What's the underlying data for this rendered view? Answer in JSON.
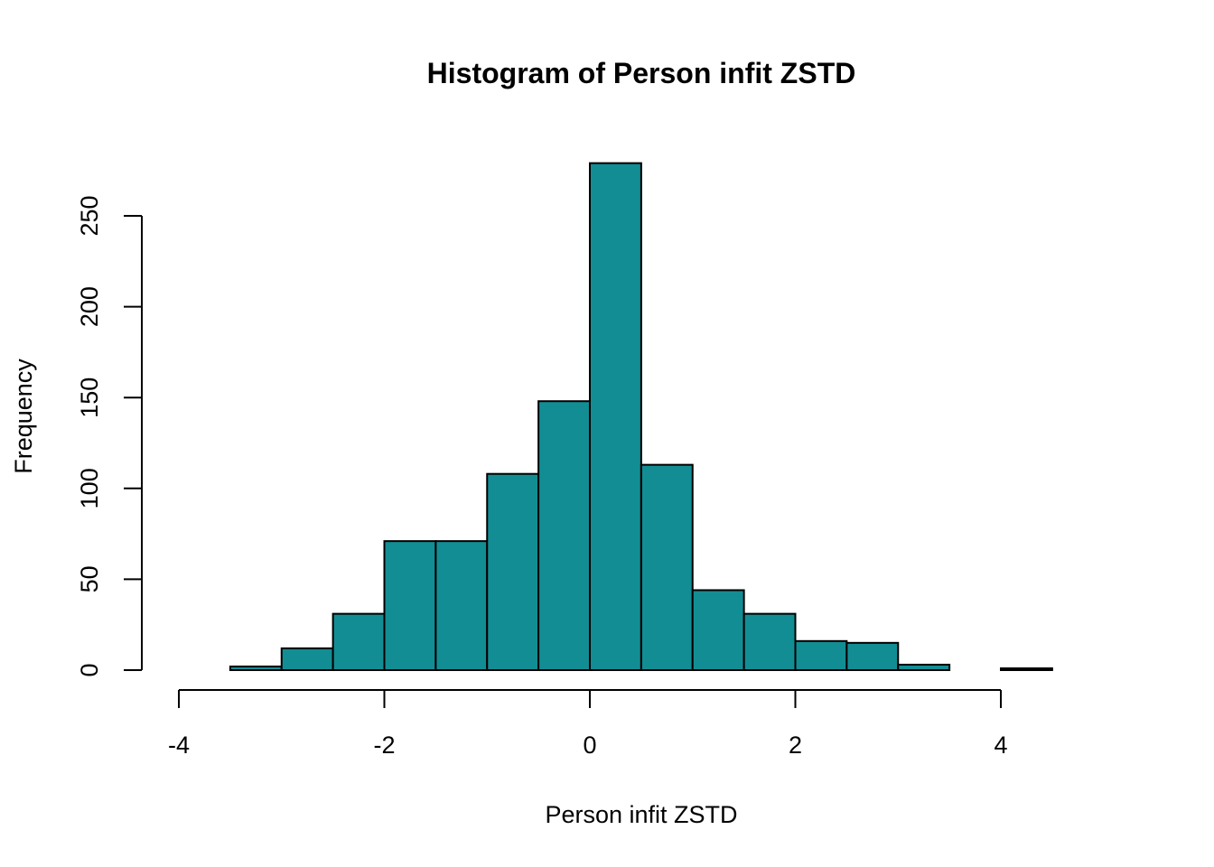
{
  "chart_data": {
    "type": "bar",
    "subtype": "histogram",
    "title": "Histogram of Person infit ZSTD",
    "xlabel": "Person infit ZSTD",
    "ylabel": "Frequency",
    "bar_color": "#138d94",
    "bar_edge_color": "#000000",
    "xlim": [
      -4,
      4.5
    ],
    "ylim": [
      0,
      280
    ],
    "x_ticks": [
      -4,
      -2,
      0,
      2,
      4
    ],
    "x_tick_labels": [
      "-4",
      "-2",
      "0",
      "2",
      "4"
    ],
    "y_ticks": [
      0,
      50,
      100,
      150,
      200,
      250
    ],
    "y_tick_labels": [
      "0",
      "50",
      "100",
      "150",
      "200",
      "250"
    ],
    "grid": false,
    "legend": "none",
    "bins": [
      {
        "x0": -3.5,
        "x1": -3.0,
        "count": 2
      },
      {
        "x0": -3.0,
        "x1": -2.5,
        "count": 12
      },
      {
        "x0": -2.5,
        "x1": -2.0,
        "count": 31
      },
      {
        "x0": -2.0,
        "x1": -1.5,
        "count": 71
      },
      {
        "x0": -1.5,
        "x1": -1.0,
        "count": 71
      },
      {
        "x0": -1.0,
        "x1": -0.5,
        "count": 108
      },
      {
        "x0": -0.5,
        "x1": 0.0,
        "count": 148
      },
      {
        "x0": 0.0,
        "x1": 0.5,
        "count": 279
      },
      {
        "x0": 0.5,
        "x1": 1.0,
        "count": 113
      },
      {
        "x0": 1.0,
        "x1": 1.5,
        "count": 44
      },
      {
        "x0": 1.5,
        "x1": 2.0,
        "count": 31
      },
      {
        "x0": 2.0,
        "x1": 2.5,
        "count": 16
      },
      {
        "x0": 2.5,
        "x1": 3.0,
        "count": 15
      },
      {
        "x0": 3.0,
        "x1": 3.5,
        "count": 3
      },
      {
        "x0": 3.5,
        "x1": 4.0,
        "count": 0
      },
      {
        "x0": 4.0,
        "x1": 4.5,
        "count": 1
      }
    ]
  }
}
